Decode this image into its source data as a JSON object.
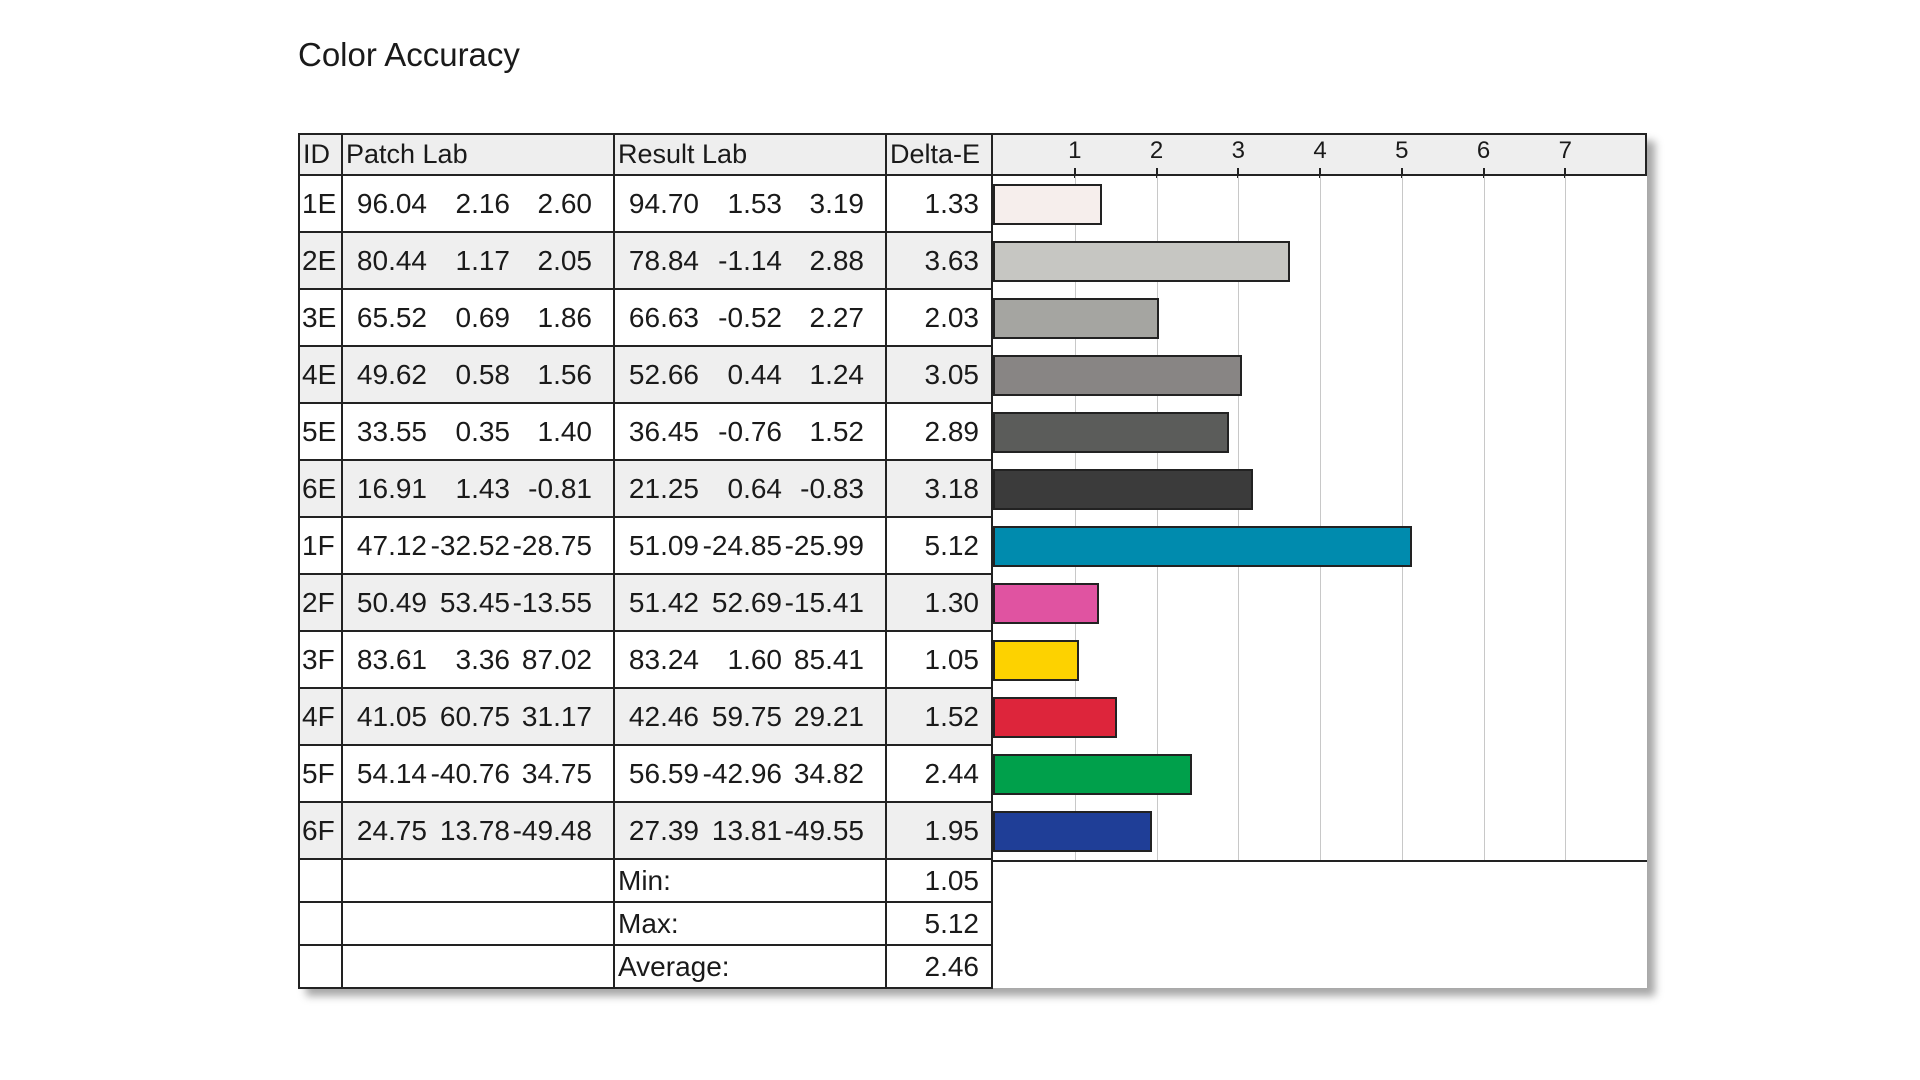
{
  "title": "Color Accuracy",
  "headers": {
    "id": "ID",
    "patch": "Patch Lab",
    "result": "Result Lab",
    "delta": "Delta-E"
  },
  "rows": [
    {
      "id": "1E",
      "patch": [
        "96.04",
        "2.16",
        "2.60"
      ],
      "result": [
        "94.70",
        "1.53",
        "3.19"
      ],
      "delta": "1.33",
      "color": "#f6eeec"
    },
    {
      "id": "2E",
      "patch": [
        "80.44",
        "1.17",
        "2.05"
      ],
      "result": [
        "78.84",
        "-1.14",
        "2.88"
      ],
      "delta": "3.63",
      "color": "#c6c6c2"
    },
    {
      "id": "3E",
      "patch": [
        "65.52",
        "0.69",
        "1.86"
      ],
      "result": [
        "66.63",
        "-0.52",
        "2.27"
      ],
      "delta": "2.03",
      "color": "#a5a5a1"
    },
    {
      "id": "4E",
      "patch": [
        "49.62",
        "0.58",
        "1.56"
      ],
      "result": [
        "52.66",
        "0.44",
        "1.24"
      ],
      "delta": "3.05",
      "color": "#888584"
    },
    {
      "id": "5E",
      "patch": [
        "33.55",
        "0.35",
        "1.40"
      ],
      "result": [
        "36.45",
        "-0.76",
        "1.52"
      ],
      "delta": "2.89",
      "color": "#5b5c5a"
    },
    {
      "id": "6E",
      "patch": [
        "16.91",
        "1.43",
        "-0.81"
      ],
      "result": [
        "21.25",
        "0.64",
        "-0.83"
      ],
      "delta": "3.18",
      "color": "#3b3b3b"
    },
    {
      "id": "1F",
      "patch": [
        "47.12",
        "-32.52",
        "-28.75"
      ],
      "result": [
        "51.09",
        "-24.85",
        "-25.99"
      ],
      "delta": "5.12",
      "color": "#008bae"
    },
    {
      "id": "2F",
      "patch": [
        "50.49",
        "53.45",
        "-13.55"
      ],
      "result": [
        "51.42",
        "52.69",
        "-15.41"
      ],
      "delta": "1.30",
      "color": "#e053a1"
    },
    {
      "id": "3F",
      "patch": [
        "83.61",
        "3.36",
        "87.02"
      ],
      "result": [
        "83.24",
        "1.60",
        "85.41"
      ],
      "delta": "1.05",
      "color": "#fdd200"
    },
    {
      "id": "4F",
      "patch": [
        "41.05",
        "60.75",
        "31.17"
      ],
      "result": [
        "42.46",
        "59.75",
        "29.21"
      ],
      "delta": "1.52",
      "color": "#dd253b"
    },
    {
      "id": "5F",
      "patch": [
        "54.14",
        "-40.76",
        "34.75"
      ],
      "result": [
        "56.59",
        "-42.96",
        "34.82"
      ],
      "delta": "2.44",
      "color": "#00a04b"
    },
    {
      "id": "6F",
      "patch": [
        "24.75",
        "13.78",
        "-49.48"
      ],
      "result": [
        "27.39",
        "13.81",
        "-49.55"
      ],
      "delta": "1.95",
      "color": "#1f3e97"
    }
  ],
  "summary": [
    {
      "label": "Min:",
      "value": "1.05"
    },
    {
      "label": "Max:",
      "value": "5.12"
    },
    {
      "label": "Average:",
      "value": "2.46"
    }
  ],
  "chart_data": {
    "type": "bar",
    "orientation": "horizontal",
    "title": "Color Accuracy",
    "xlabel": "Delta-E",
    "ylabel": "",
    "categories": [
      "1E",
      "2E",
      "3E",
      "4E",
      "5E",
      "6E",
      "1F",
      "2F",
      "3F",
      "4F",
      "5F",
      "6F"
    ],
    "values": [
      1.33,
      3.63,
      2.03,
      3.05,
      2.89,
      3.18,
      5.12,
      1.3,
      1.05,
      1.52,
      2.44,
      1.95
    ],
    "xlim": [
      0,
      8
    ],
    "ticks": [
      "1",
      "2",
      "3",
      "4",
      "5",
      "6",
      "7"
    ],
    "grid": true
  }
}
